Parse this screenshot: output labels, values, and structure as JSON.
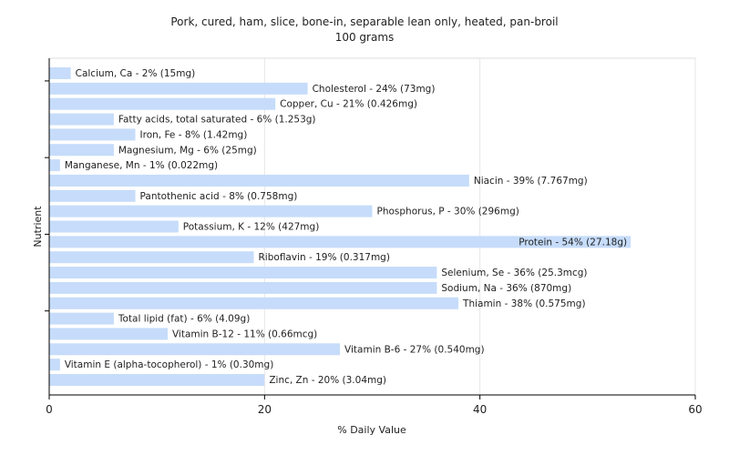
{
  "chart_data": {
    "type": "bar",
    "orientation": "horizontal",
    "title": "Pork, cured, ham, slice, bone-in, separable lean only, heated, pan-broil",
    "subtitle": "100 grams",
    "xlabel": "% Daily Value",
    "ylabel": "Nutrient",
    "xlim": [
      0,
      60
    ],
    "xticks": [
      0,
      20,
      40,
      60
    ],
    "grid": true,
    "bar_color": "#c6dcfa",
    "categories": [
      "Calcium, Ca - 2% (15mg)",
      "Cholesterol - 24% (73mg)",
      "Copper, Cu - 21% (0.426mg)",
      "Fatty acids, total saturated - 6% (1.253g)",
      "Iron, Fe - 8% (1.42mg)",
      "Magnesium, Mg - 6% (25mg)",
      "Manganese, Mn - 1% (0.022mg)",
      "Niacin - 39% (7.767mg)",
      "Pantothenic acid - 8% (0.758mg)",
      "Phosphorus, P - 30% (296mg)",
      "Potassium, K - 12% (427mg)",
      "Protein - 54% (27.18g)",
      "Riboflavin - 19% (0.317mg)",
      "Selenium, Se - 36% (25.3mcg)",
      "Sodium, Na - 36% (870mg)",
      "Thiamin - 38% (0.575mg)",
      "Total lipid (fat) - 6% (4.09g)",
      "Vitamin B-12 - 11% (0.66mcg)",
      "Vitamin B-6 - 27% (0.540mg)",
      "Vitamin E (alpha-tocopherol) - 1% (0.30mg)",
      "Zinc, Zn - 20% (3.04mg)"
    ],
    "values": [
      2,
      24,
      21,
      6,
      8,
      6,
      1,
      39,
      8,
      30,
      12,
      54,
      19,
      36,
      36,
      38,
      6,
      11,
      27,
      1,
      20
    ]
  }
}
